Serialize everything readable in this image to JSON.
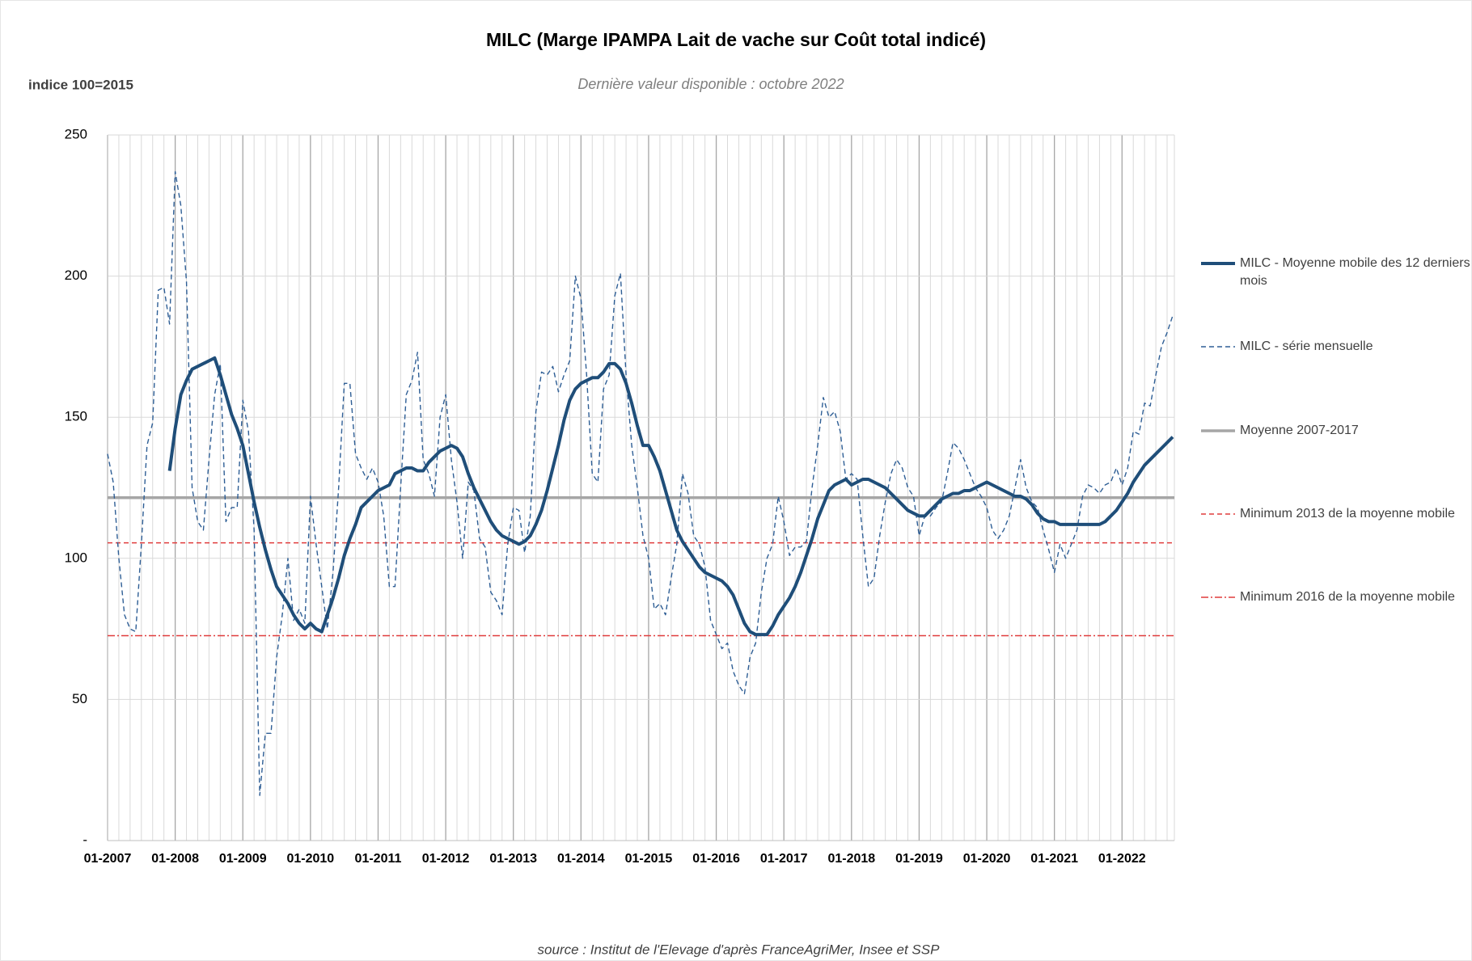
{
  "chart_data": {
    "type": "line",
    "title": "MILC (Marge IPAMPA Lait de vache sur Coût total indicé)",
    "subtitle": "Dernière valeur disponible : octobre 2022",
    "y_label": "indice 100=2015",
    "source": "source : Institut de l'Elevage d'après FranceAgriMer, Insee et SSP",
    "categories": [
      "01-2007",
      null,
      null,
      null,
      null,
      null,
      null,
      null,
      null,
      null,
      null,
      null,
      "01-2008",
      null,
      null,
      null,
      null,
      null,
      null,
      null,
      null,
      null,
      null,
      null,
      "01-2009",
      null,
      null,
      null,
      null,
      null,
      null,
      null,
      null,
      null,
      null,
      null,
      "01-2010",
      null,
      null,
      null,
      null,
      null,
      null,
      null,
      null,
      null,
      null,
      null,
      "01-2011",
      null,
      null,
      null,
      null,
      null,
      null,
      null,
      null,
      null,
      null,
      null,
      "01-2012",
      null,
      null,
      null,
      null,
      null,
      null,
      null,
      null,
      null,
      null,
      null,
      "01-2013",
      null,
      null,
      null,
      null,
      null,
      null,
      null,
      null,
      null,
      null,
      null,
      "01-2014",
      null,
      null,
      null,
      null,
      null,
      null,
      null,
      null,
      null,
      null,
      null,
      "01-2015",
      null,
      null,
      null,
      null,
      null,
      null,
      null,
      null,
      null,
      null,
      null,
      "01-2016",
      null,
      null,
      null,
      null,
      null,
      null,
      null,
      null,
      null,
      null,
      null,
      "01-2017",
      null,
      null,
      null,
      null,
      null,
      null,
      null,
      null,
      null,
      null,
      null,
      "01-2018",
      null,
      null,
      null,
      null,
      null,
      null,
      null,
      null,
      null,
      null,
      null,
      "01-2019",
      null,
      null,
      null,
      null,
      null,
      null,
      null,
      null,
      null,
      null,
      null,
      "01-2020",
      null,
      null,
      null,
      null,
      null,
      null,
      null,
      null,
      null,
      null,
      null,
      "01-2021",
      null,
      null,
      null,
      null,
      null,
      null,
      null,
      null,
      null,
      null,
      null,
      "01-2022",
      null,
      null,
      null,
      null,
      null,
      null,
      null,
      null,
      null
    ],
    "series": [
      {
        "name": "MILC - Moyenne mobile des 12 derniers mois",
        "color": "#1f4e79",
        "style": "solid",
        "values": [
          null,
          null,
          null,
          null,
          null,
          null,
          null,
          null,
          null,
          null,
          null,
          131,
          146,
          158,
          163,
          167,
          168,
          169,
          170,
          171,
          165,
          158,
          151,
          146,
          140,
          130,
          120,
          111,
          103,
          96,
          90,
          87,
          84,
          80,
          77,
          75,
          77,
          75,
          74,
          80,
          86,
          93,
          101,
          107,
          112,
          118,
          120,
          122,
          124,
          125,
          126,
          130,
          131,
          132,
          132,
          131,
          131,
          134,
          136,
          138,
          139,
          140,
          139,
          136,
          130,
          125,
          121,
          117,
          113,
          110,
          108,
          107,
          106,
          105,
          106,
          108,
          112,
          117,
          124,
          132,
          140,
          149,
          156,
          160,
          162,
          163,
          164,
          164,
          166,
          169,
          169,
          167,
          162,
          155,
          147,
          140,
          140,
          136,
          131,
          124,
          117,
          110,
          106,
          103,
          100,
          97,
          95,
          94,
          93,
          92,
          90,
          87,
          82,
          77,
          74,
          73,
          73,
          73,
          76,
          80,
          83,
          86,
          90,
          95,
          101,
          107,
          114,
          119,
          124,
          126,
          127,
          128,
          126,
          127,
          128,
          128,
          127,
          126,
          125,
          123,
          121,
          119,
          117,
          116,
          115,
          115,
          117,
          119,
          121,
          122,
          123,
          123,
          124,
          124,
          125,
          126,
          127,
          126,
          125,
          124,
          123,
          122,
          122,
          121,
          119,
          116,
          114,
          113,
          113,
          112,
          112,
          112,
          112,
          112,
          112,
          112,
          112,
          113,
          115,
          117,
          120,
          123,
          127,
          130,
          133,
          135,
          137,
          139,
          141,
          143
        ]
      },
      {
        "name": "MILC - série mensuelle",
        "color": "#2e5e95",
        "style": "dashed",
        "values": [
          137,
          127,
          100,
          80,
          75,
          74,
          105,
          140,
          148,
          195,
          196,
          183,
          237,
          225,
          198,
          125,
          113,
          110,
          135,
          158,
          169,
          113,
          118,
          118,
          156,
          145,
          110,
          16,
          38,
          38,
          65,
          80,
          100,
          78,
          82,
          77,
          122,
          105,
          90,
          75,
          95,
          125,
          162,
          162,
          137,
          132,
          128,
          132,
          127,
          115,
          90,
          90,
          125,
          158,
          163,
          173,
          135,
          130,
          122,
          150,
          158,
          135,
          120,
          100,
          127,
          124,
          107,
          104,
          88,
          85,
          80,
          105,
          118,
          117,
          102,
          115,
          152,
          166,
          165,
          168,
          159,
          165,
          170,
          200,
          192,
          165,
          130,
          127,
          160,
          165,
          193,
          201,
          165,
          140,
          125,
          108,
          100,
          82,
          84,
          80,
          93,
          105,
          130,
          123,
          108,
          105,
          97,
          78,
          73,
          68,
          70,
          60,
          55,
          52,
          65,
          70,
          88,
          100,
          105,
          122,
          113,
          101,
          104,
          104,
          106,
          125,
          140,
          157,
          150,
          152,
          145,
          128,
          130,
          128,
          108,
          90,
          93,
          108,
          120,
          130,
          135,
          132,
          125,
          122,
          108,
          115,
          115,
          118,
          120,
          130,
          141,
          139,
          135,
          130,
          125,
          122,
          118,
          110,
          107,
          110,
          115,
          125,
          135,
          125,
          120,
          118,
          110,
          103,
          95,
          105,
          100,
          105,
          110,
          122,
          126,
          125,
          123,
          126,
          127,
          132,
          126,
          132,
          145,
          144,
          155,
          154,
          165,
          175,
          180,
          186
        ]
      }
    ],
    "hlines": [
      {
        "name": "Moyenne 2007-2017",
        "color": "#a6a6a6",
        "style": "solid",
        "value": 121.5
      },
      {
        "name": "Minimum 2013 de la moyenne mobile",
        "color": "#e03c3c",
        "style": "dashed",
        "value": 105.5
      },
      {
        "name": "Minimum 2016 de la moyenne mobile",
        "color": "#e03c3c",
        "style": "dashdot",
        "value": 72.6
      }
    ],
    "ylim": [
      0,
      250
    ],
    "yticks": [
      {
        "value": 0,
        "label": "-"
      },
      50,
      100,
      150,
      200,
      250
    ],
    "grid": true,
    "legend": "right"
  }
}
